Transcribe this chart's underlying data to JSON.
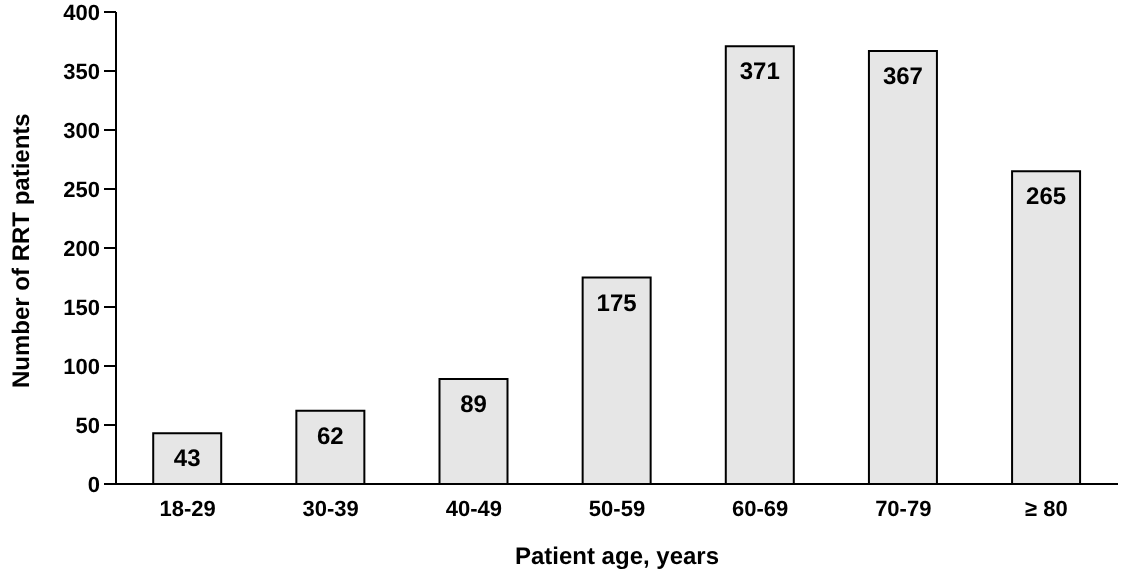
{
  "chart_data": {
    "type": "bar",
    "xlabel": "Patient age, years",
    "ylabel": "Number of RRT patients",
    "categories": [
      "18-29",
      "30-39",
      "40-49",
      "50-59",
      "60-69",
      "70-79",
      "≥ 80"
    ],
    "values": [
      43,
      62,
      89,
      175,
      371,
      367,
      265
    ],
    "color": "#e6e6e6",
    "ylim": [
      0,
      400
    ],
    "yticks": [
      0,
      50,
      100,
      150,
      200,
      250,
      300,
      350,
      400
    ],
    "grid": false,
    "data_labels": true
  }
}
